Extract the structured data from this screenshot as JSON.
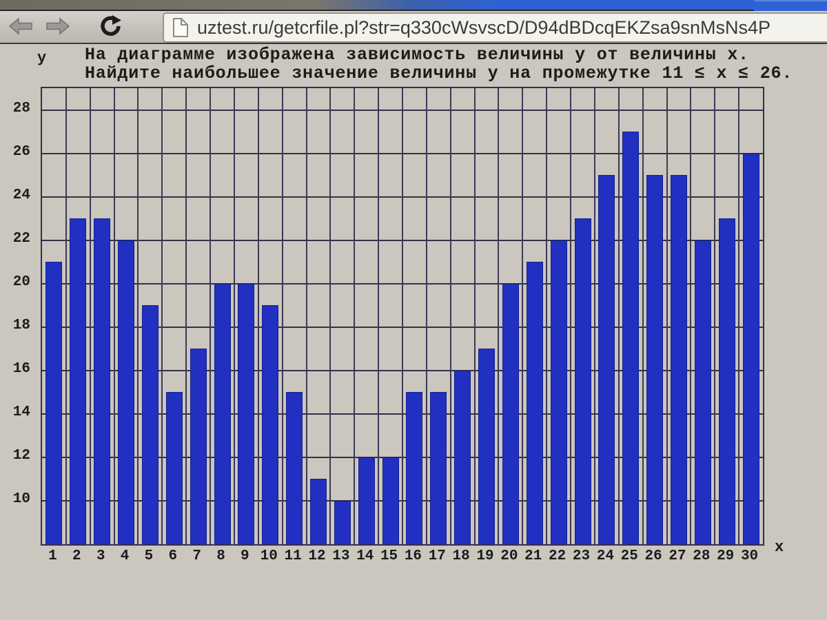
{
  "browser": {
    "url": "uztest.ru/getcrfile.pl?str=q330cWsvscD/D94dBDcqEKZsa9snMsNs4P",
    "back_icon": "back-arrow",
    "forward_icon": "forward-arrow",
    "refresh_icon": "refresh-arrow",
    "page_icon": "document-page"
  },
  "question": {
    "line1": "На диаграмме изображена зависимость величины y от величины x.",
    "line2": "Найдите наибольшее значение величины y на промежутке 11 ≤ x ≤ 26."
  },
  "chart_data": {
    "type": "bar",
    "title": "На диаграмме изображена зависимость величины y от величины x. Найдите наибольшее значение величины y на промежутке 11 ≤ x ≤ 26.",
    "xlabel": "x",
    "ylabel": "y",
    "categories": [
      1,
      2,
      3,
      4,
      5,
      6,
      7,
      8,
      9,
      10,
      11,
      12,
      13,
      14,
      15,
      16,
      17,
      18,
      19,
      20,
      21,
      22,
      23,
      24,
      25,
      26,
      27,
      28,
      29,
      30
    ],
    "values": [
      21,
      23,
      23,
      22,
      19,
      15,
      17,
      20,
      20,
      19,
      15,
      11,
      10,
      12,
      12,
      15,
      15,
      16,
      17,
      20,
      21,
      22,
      23,
      25,
      27,
      25,
      25,
      22,
      23,
      26
    ],
    "ylim": [
      8,
      29
    ],
    "yticks": {
      "start": 10,
      "end": 28,
      "step": 2
    },
    "grid": "on",
    "legend": "none",
    "bar_color": "#2130c0",
    "bar_border_color": "#141f8e",
    "grid_color": "#30304a",
    "background_color": "#cbc7bf",
    "max_on_interval_11_26": 27
  }
}
